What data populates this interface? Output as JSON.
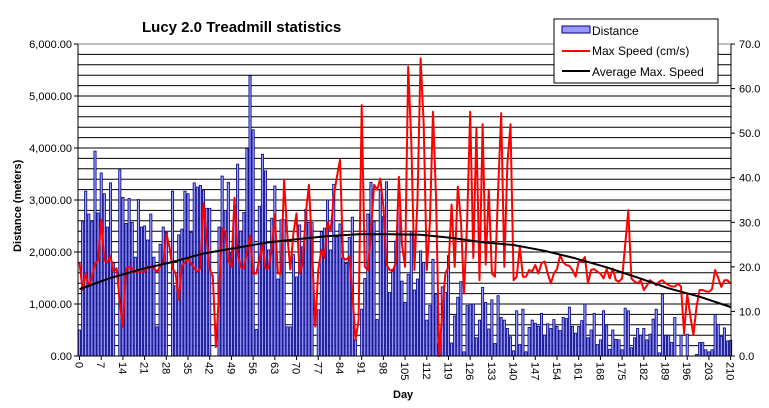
{
  "chart_data": {
    "type": "bar+line",
    "title": "Lucy 2.0 Treadmill statistics",
    "xlabel": "Day",
    "ylabel": "Distance (meters)",
    "xlim": [
      0,
      210
    ],
    "ylim": [
      0,
      6000
    ],
    "y2lim": [
      0,
      70
    ],
    "grid": true,
    "legend_position": "top-right",
    "x_ticks": [
      "0",
      "7",
      "14",
      "21",
      "28",
      "35",
      "42",
      "49",
      "56",
      "63",
      "70",
      "77",
      "84",
      "91",
      "98",
      "105",
      "112",
      "119",
      "126",
      "133",
      "140",
      "147",
      "154",
      "161",
      "168",
      "175",
      "182",
      "189",
      "196",
      "203",
      "210"
    ],
    "y_ticks": [
      "0.00",
      "1,000.00",
      "2,000.00",
      "3,000.00",
      "4,000.00",
      "5,000.00",
      "6,000.00"
    ],
    "y2_ticks": [
      "0.0",
      "10.0",
      "20.0",
      "30.0",
      "40.0",
      "50.0",
      "60.0",
      "70.0"
    ],
    "colors": {
      "distance_fill": "#9999FF",
      "distance_edge": "#000080",
      "max_speed": "#FF0000",
      "average": "#000000"
    },
    "series": [
      {
        "name": "Distance",
        "type": "bar",
        "axis": "left",
        "values": [
          500,
          2580,
          3170,
          2730,
          2580,
          3940,
          2750,
          3520,
          3120,
          2480,
          3330,
          1790,
          0,
          3580,
          3050,
          2550,
          3030,
          2570,
          1900,
          3010,
          2480,
          2500,
          2230,
          2730,
          1900,
          560,
          2150,
          2480,
          2380,
          0,
          3170,
          1350,
          2330,
          2440,
          3170,
          3120,
          2380,
          3330,
          3250,
          3280,
          3180,
          2840,
          2840,
          0,
          0,
          2480,
          3460,
          2800,
          3340,
          2000,
          2880,
          3690,
          2400,
          2760,
          3990,
          5390,
          4350,
          510,
          2880,
          3880,
          3560,
          2040,
          2650,
          3270,
          1480,
          2620,
          2620,
          560,
          560,
          1950,
          1520,
          2520,
          2100,
          2820,
          2570,
          2570,
          0,
          890,
          2390,
          2460,
          3000,
          2040,
          3300,
          2290,
          2540,
          1880,
          1780,
          2280,
          2670,
          310,
          0,
          900,
          1490,
          2730,
          3340,
          2590,
          700,
          3190,
          2680,
          3350,
          1220,
          1670,
          2210,
          2900,
          1440,
          1030,
          1570,
          2400,
          1270,
          1480,
          2020,
          1800,
          690,
          970,
          1860,
          1190,
          240,
          1330,
          1220,
          1930,
          250,
          770,
          1130,
          1430,
          80,
          970,
          1000,
          1000,
          350,
          690,
          1320,
          1030,
          520,
          1080,
          240,
          1160,
          740,
          690,
          530,
          370,
          100,
          870,
          220,
          900,
          80,
          550,
          690,
          630,
          570,
          820,
          400,
          620,
          530,
          700,
          570,
          490,
          740,
          720,
          940,
          570,
          440,
          570,
          680,
          1000,
          350,
          500,
          820,
          220,
          310,
          870,
          580,
          130,
          500,
          320,
          310,
          120,
          920,
          870,
          160,
          350,
          530,
          400,
          530,
          310,
          420,
          710,
          900,
          60,
          1190,
          400,
          400,
          260,
          740,
          0,
          400,
          0,
          420,
          0,
          0,
          30,
          260,
          260,
          120,
          80,
          120,
          800,
          610,
          380,
          540,
          290,
          300
        ]
      },
      {
        "name": "Max Speed (cm/s)",
        "type": "line",
        "axis": "right",
        "values": [
          21,
          14.8,
          18.5,
          15.6,
          17.5,
          20.7,
          21.5,
          30.6,
          21.5,
          21,
          22.4,
          18.9,
          19.7,
          11.8,
          6.6,
          19.7,
          19.9,
          19.7,
          18.9,
          18.9,
          18.9,
          18.9,
          20.1,
          20,
          19.7,
          18.9,
          20.1,
          20.7,
          27.5,
          24.5,
          19.7,
          18.5,
          12.6,
          20.1,
          21,
          21.8,
          20.7,
          19.7,
          18.9,
          19.7,
          34.3,
          26.8,
          19.4,
          17.9,
          2,
          14,
          28.6,
          27.9,
          21.5,
          20,
          35.5,
          23.1,
          20,
          19.7,
          23.1,
          27,
          18.5,
          18.5,
          21.5,
          25.2,
          19.7,
          19.7,
          23.8,
          31.7,
          18.5,
          18.5,
          39.5,
          27.5,
          19.4,
          27.5,
          32,
          18.5,
          20.7,
          32,
          38.4,
          24.5,
          6.6,
          19.4,
          23.8,
          22,
          30,
          28,
          36,
          40.2,
          44,
          22,
          21.6,
          22.3,
          14,
          3.6,
          8,
          56.3,
          20,
          19.3,
          28,
          38.4,
          37.3,
          39.8,
          33.5,
          20.5,
          19.3,
          19,
          21,
          40.2,
          25,
          20,
          64.9,
          48,
          19.3,
          35,
          66.8,
          52,
          19.3,
          30,
          54.8,
          35,
          0,
          10,
          18.5,
          20,
          34,
          20,
          38,
          30.5,
          14,
          30,
          54.8,
          22,
          51,
          17,
          52,
          20.5,
          37.2,
          18.5,
          17.8,
          37,
          54.5,
          20,
          43.2,
          52,
          17,
          17.8,
          24.5,
          17.8,
          17.8,
          19.3,
          19,
          20.4,
          18.5,
          20.8,
          21.2,
          18.5,
          16.3,
          18.5,
          19.5,
          22.6,
          21,
          20.4,
          20.2,
          19.3,
          17.8,
          21.2,
          21.2,
          22.2,
          16.3,
          19.3,
          19.5,
          18.9,
          18.5,
          17.4,
          19.5,
          17.4,
          19.6,
          17,
          16.7,
          17.4,
          25,
          32.7,
          17.4,
          16.7,
          16.3,
          17,
          14.8,
          15.8,
          17,
          16.5,
          15.9,
          16.7,
          17,
          16.3,
          15.9,
          15.6,
          15.6,
          16.2,
          15.6,
          5,
          14,
          9,
          4.7,
          11,
          14.8,
          14.8,
          14.5,
          14.4,
          15,
          19.3,
          17.5,
          15.5,
          17,
          17,
          16.2
        ]
      },
      {
        "name": "Average Max. Speed",
        "type": "line",
        "axis": "right",
        "x": [
          0,
          10,
          20,
          30,
          40,
          50,
          60,
          70,
          80,
          90,
          100,
          110,
          120,
          130,
          140,
          150,
          160,
          170,
          180,
          190,
          200,
          210
        ],
        "values": [
          15,
          17.5,
          19.5,
          21.1,
          23,
          24.2,
          25.4,
          26.2,
          26.9,
          27.3,
          27.3,
          27.2,
          26.5,
          25.5,
          24.9,
          23.6,
          21.9,
          19.9,
          17.6,
          15.2,
          13.3,
          11
        ]
      }
    ]
  }
}
